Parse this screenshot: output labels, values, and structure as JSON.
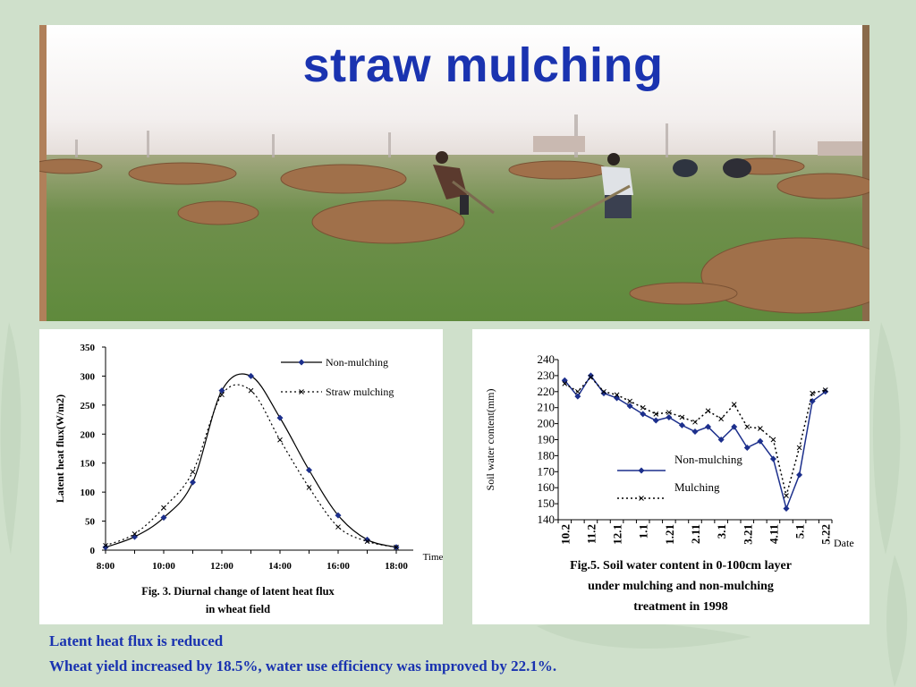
{
  "slide": {
    "title": "straw mulching",
    "captions": [
      "Latent heat flux is reduced",
      "Wheat yield increased by 18.5%, water use efficiency was improved by 22.1%."
    ]
  },
  "chart_data": [
    {
      "type": "line",
      "ylabel": "Latent heat flux(W/m2)",
      "xlabel": "Time",
      "ylim": [
        0,
        350
      ],
      "yticks": [
        0,
        50,
        100,
        150,
        200,
        250,
        300,
        350
      ],
      "xticks": [
        "8:00",
        "10:00",
        "12:00",
        "14:00",
        "16:00",
        "18:00"
      ],
      "x_hours": [
        8,
        9,
        10,
        11,
        12,
        13,
        14,
        15,
        16,
        17,
        18
      ],
      "legend_position": "top-right",
      "caption_lines": [
        "Fig. 3. Diurnal change of latent heat flux",
        "in wheat field"
      ],
      "series": [
        {
          "name": "Non-mulching",
          "style": "solid-diamond",
          "values": [
            5,
            23,
            56,
            117,
            275,
            300,
            228,
            138,
            60,
            18,
            5
          ]
        },
        {
          "name": "Straw mulching",
          "style": "dotted-cross",
          "values": [
            8,
            28,
            73,
            135,
            268,
            275,
            190,
            108,
            40,
            15,
            5
          ]
        }
      ]
    },
    {
      "type": "line",
      "ylabel": "Soil water content(mm)",
      "xlabel": "Date",
      "ylim": [
        140,
        240
      ],
      "yticks": [
        140,
        150,
        160,
        170,
        180,
        190,
        200,
        210,
        220,
        230,
        240
      ],
      "xticks": [
        "10.2",
        "11.2",
        "12.1",
        "1.1",
        "1.21",
        "2.11",
        "3.1",
        "3.21",
        "4.11",
        "5.1",
        "5.22"
      ],
      "legend_position": "center-right",
      "caption_lines": [
        "Fig.5. Soil water content in 0-100cm layer",
        "under mulching and non-mulching",
        "treatment in 1998"
      ],
      "series": [
        {
          "name": "Non-mulching",
          "style": "solid-diamond",
          "values": [
            227,
            217,
            230,
            219,
            216,
            211,
            206,
            202,
            204,
            199,
            195,
            198,
            190,
            198,
            185,
            189,
            178,
            147,
            168,
            214,
            220
          ]
        },
        {
          "name": "Mulching",
          "style": "dotted-cross",
          "values": [
            225,
            220,
            229,
            220,
            218,
            214,
            210,
            206,
            207,
            204,
            201,
            208,
            203,
            212,
            198,
            197,
            190,
            155,
            185,
            219,
            221
          ]
        }
      ]
    }
  ]
}
